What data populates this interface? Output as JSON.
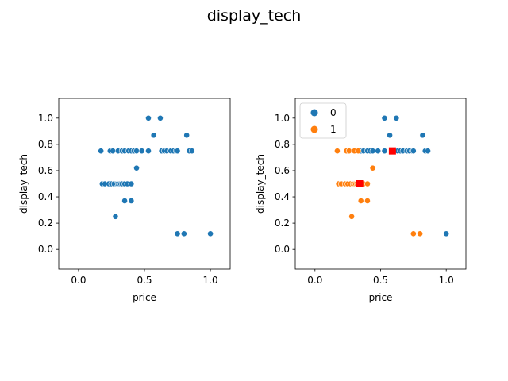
{
  "figure": {
    "title": "display_tech"
  },
  "colors": {
    "series0": "#1f77b4",
    "series1": "#ff7f0e",
    "centroid": "#ff0000"
  },
  "chart_data": [
    {
      "type": "scatter",
      "xlabel": "price",
      "ylabel": "display_tech",
      "xlim": [
        -0.15,
        1.15
      ],
      "ylim": [
        -0.15,
        1.15
      ],
      "xticks": [
        "0.0",
        "0.5",
        "1.0"
      ],
      "yticks": [
        "0.0",
        "0.2",
        "0.4",
        "0.6",
        "0.8",
        "1.0"
      ],
      "xtick_values": [
        0,
        0.5,
        1
      ],
      "ytick_values": [
        0,
        0.2,
        0.4,
        0.6,
        0.8,
        1.0
      ],
      "grid": false,
      "series": [
        {
          "color": "#1f77b4",
          "points": [
            [
              0.17,
              0.75
            ],
            [
              0.24,
              0.75
            ],
            [
              0.26,
              0.75
            ],
            [
              0.3,
              0.75
            ],
            [
              0.33,
              0.75
            ],
            [
              0.35,
              0.75
            ],
            [
              0.38,
              0.75
            ],
            [
              0.4,
              0.75
            ],
            [
              0.42,
              0.75
            ],
            [
              0.44,
              0.75
            ],
            [
              0.48,
              0.75
            ],
            [
              0.53,
              0.75
            ],
            [
              0.63,
              0.75
            ],
            [
              0.65,
              0.75
            ],
            [
              0.67,
              0.75
            ],
            [
              0.7,
              0.75
            ],
            [
              0.72,
              0.75
            ],
            [
              0.74,
              0.75
            ],
            [
              0.75,
              0.75
            ],
            [
              0.84,
              0.75
            ],
            [
              0.86,
              0.75
            ],
            [
              0.18,
              0.5
            ],
            [
              0.2,
              0.5
            ],
            [
              0.23,
              0.5
            ],
            [
              0.25,
              0.5
            ],
            [
              0.27,
              0.5
            ],
            [
              0.29,
              0.5
            ],
            [
              0.3,
              0.5
            ],
            [
              0.31,
              0.5
            ],
            [
              0.32,
              0.5
            ],
            [
              0.33,
              0.5
            ],
            [
              0.35,
              0.5
            ],
            [
              0.37,
              0.5
            ],
            [
              0.4,
              0.5
            ],
            [
              0.53,
              1.0
            ],
            [
              0.62,
              1.0
            ],
            [
              0.57,
              0.87
            ],
            [
              0.82,
              0.87
            ],
            [
              0.44,
              0.62
            ],
            [
              0.35,
              0.37
            ],
            [
              0.4,
              0.37
            ],
            [
              0.28,
              0.25
            ],
            [
              0.75,
              0.12
            ],
            [
              0.8,
              0.12
            ],
            [
              1.0,
              0.12
            ]
          ]
        }
      ]
    },
    {
      "type": "scatter",
      "xlabel": "price",
      "ylabel": "display_tech",
      "xlim": [
        -0.15,
        1.15
      ],
      "ylim": [
        -0.15,
        1.15
      ],
      "xticks": [
        "0.0",
        "0.5",
        "1.0"
      ],
      "yticks": [
        "0.0",
        "0.2",
        "0.4",
        "0.6",
        "0.8",
        "1.0"
      ],
      "xtick_values": [
        0,
        0.5,
        1
      ],
      "ytick_values": [
        0,
        0.2,
        0.4,
        0.6,
        0.8,
        1.0
      ],
      "grid": false,
      "legend": {
        "placement": "top-left",
        "entries": [
          "0",
          "1"
        ]
      },
      "series": [
        {
          "name": "0",
          "color": "#1f77b4",
          "points": [
            [
              0.35,
              0.75
            ],
            [
              0.37,
              0.75
            ],
            [
              0.4,
              0.75
            ],
            [
              0.42,
              0.75
            ],
            [
              0.44,
              0.75
            ],
            [
              0.48,
              0.75
            ],
            [
              0.53,
              0.75
            ],
            [
              0.63,
              0.75
            ],
            [
              0.65,
              0.75
            ],
            [
              0.67,
              0.75
            ],
            [
              0.7,
              0.75
            ],
            [
              0.72,
              0.75
            ],
            [
              0.74,
              0.75
            ],
            [
              0.75,
              0.75
            ],
            [
              0.84,
              0.75
            ],
            [
              0.86,
              0.75
            ],
            [
              0.53,
              1.0
            ],
            [
              0.62,
              1.0
            ],
            [
              0.57,
              0.87
            ],
            [
              0.82,
              0.87
            ],
            [
              1.0,
              0.12
            ]
          ]
        },
        {
          "name": "1",
          "color": "#ff7f0e",
          "points": [
            [
              0.17,
              0.75
            ],
            [
              0.24,
              0.75
            ],
            [
              0.26,
              0.75
            ],
            [
              0.3,
              0.75
            ],
            [
              0.33,
              0.75
            ],
            [
              0.18,
              0.5
            ],
            [
              0.2,
              0.5
            ],
            [
              0.23,
              0.5
            ],
            [
              0.25,
              0.5
            ],
            [
              0.27,
              0.5
            ],
            [
              0.29,
              0.5
            ],
            [
              0.3,
              0.5
            ],
            [
              0.31,
              0.5
            ],
            [
              0.32,
              0.5
            ],
            [
              0.33,
              0.5
            ],
            [
              0.35,
              0.5
            ],
            [
              0.37,
              0.5
            ],
            [
              0.4,
              0.5
            ],
            [
              0.44,
              0.62
            ],
            [
              0.35,
              0.37
            ],
            [
              0.4,
              0.37
            ],
            [
              0.28,
              0.25
            ],
            [
              0.75,
              0.12
            ],
            [
              0.8,
              0.12
            ]
          ]
        }
      ],
      "centroids": [
        {
          "color": "#ff0000",
          "x": 0.59,
          "y": 0.75
        },
        {
          "color": "#ff0000",
          "x": 0.34,
          "y": 0.5
        }
      ]
    }
  ]
}
